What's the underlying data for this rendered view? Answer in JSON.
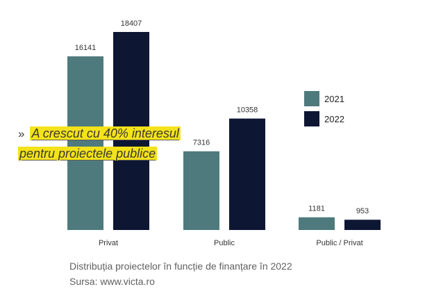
{
  "chart_data": {
    "type": "bar",
    "categories": [
      "Privat",
      "Public",
      "Public / Privat"
    ],
    "series": [
      {
        "name": "2021",
        "values": [
          16141,
          7316,
          1181
        ],
        "color": "#4f7a7d"
      },
      {
        "name": "2022",
        "values": [
          18407,
          10358,
          953
        ],
        "color": "#0d1733"
      }
    ],
    "ylim": [
      0,
      18407
    ],
    "grid": false,
    "legend_position": "right",
    "data_labels": true
  },
  "callout": {
    "marker": "»",
    "line1": "A crescut cu 40% interesul",
    "line2": "pentru proiectele publice",
    "highlight_color": "#f4e21a"
  },
  "caption": {
    "title": "Distribuția proiectelor în funcție de finanțare în 2022",
    "source": "Sursa: www.victa.ro"
  }
}
